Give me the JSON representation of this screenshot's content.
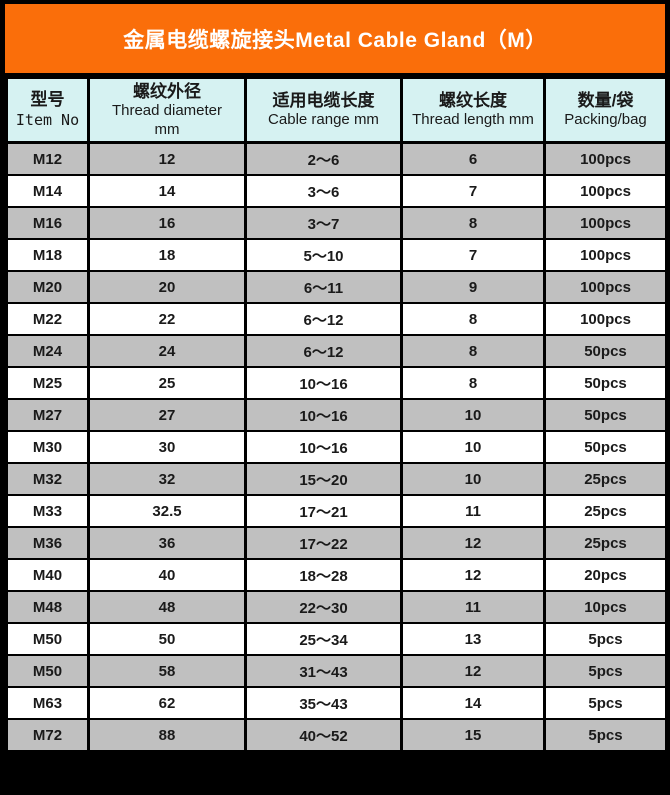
{
  "title": "金属电缆螺旋接头Metal Cable Gland（M）",
  "colors": {
    "title_bg": "#fa6e0a",
    "title_text": "#ffffff",
    "column_header_bg": "#d6f2f2",
    "row_bg": "#ffffff",
    "row_alt_bg": "#c0c0c0",
    "border": "#000000",
    "text": "#1a1a1a"
  },
  "columns": [
    {
      "zh": "型号",
      "en": "Item No",
      "unit": ""
    },
    {
      "zh": "螺纹外径",
      "en": "Thread diameter",
      "unit": "mm"
    },
    {
      "zh": "适用电缆长度",
      "en": "Cable range mm",
      "unit": ""
    },
    {
      "zh": "螺纹长度",
      "en": "Thread length mm",
      "unit": ""
    },
    {
      "zh": "数量/袋",
      "en": "Packing/bag",
      "unit": ""
    }
  ],
  "rows": [
    {
      "item": "M12",
      "thread_diameter": "12",
      "cable_range": "2～6",
      "thread_length": "6",
      "packing": "100pcs",
      "shaded": true
    },
    {
      "item": "M14",
      "thread_diameter": "14",
      "cable_range": "3～6",
      "thread_length": "7",
      "packing": "100pcs",
      "shaded": false
    },
    {
      "item": "M16",
      "thread_diameter": "16",
      "cable_range": "3～7",
      "thread_length": "8",
      "packing": "100pcs",
      "shaded": true
    },
    {
      "item": "M18",
      "thread_diameter": "18",
      "cable_range": "5～10",
      "thread_length": "7",
      "packing": "100pcs",
      "shaded": false
    },
    {
      "item": "M20",
      "thread_diameter": "20",
      "cable_range": "6～11",
      "thread_length": "9",
      "packing": "100pcs",
      "shaded": true
    },
    {
      "item": "M22",
      "thread_diameter": "22",
      "cable_range": "6～12",
      "thread_length": "8",
      "packing": "100pcs",
      "shaded": false
    },
    {
      "item": "M24",
      "thread_diameter": "24",
      "cable_range": "6～12",
      "thread_length": "8",
      "packing": "50pcs",
      "shaded": true
    },
    {
      "item": "M25",
      "thread_diameter": "25",
      "cable_range": "10～16",
      "thread_length": "8",
      "packing": "50pcs",
      "shaded": false
    },
    {
      "item": "M27",
      "thread_diameter": "27",
      "cable_range": "10～16",
      "thread_length": "10",
      "packing": "50pcs",
      "shaded": true
    },
    {
      "item": "M30",
      "thread_diameter": "30",
      "cable_range": "10～16",
      "thread_length": "10",
      "packing": "50pcs",
      "shaded": false
    },
    {
      "item": "M32",
      "thread_diameter": "32",
      "cable_range": "15～20",
      "thread_length": "10",
      "packing": "25pcs",
      "shaded": true
    },
    {
      "item": "M33",
      "thread_diameter": "32.5",
      "cable_range": "17～21",
      "thread_length": "11",
      "packing": "25pcs",
      "shaded": false
    },
    {
      "item": "M36",
      "thread_diameter": "36",
      "cable_range": "17～22",
      "thread_length": "12",
      "packing": "25pcs",
      "shaded": true
    },
    {
      "item": "M40",
      "thread_diameter": "40",
      "cable_range": "18～28",
      "thread_length": "12",
      "packing": "20pcs",
      "shaded": false
    },
    {
      "item": "M48",
      "thread_diameter": "48",
      "cable_range": "22～30",
      "thread_length": "11",
      "packing": "10pcs",
      "shaded": true
    },
    {
      "item": "M50",
      "thread_diameter": "50",
      "cable_range": "25～34",
      "thread_length": "13",
      "packing": "5pcs",
      "shaded": false
    },
    {
      "item": "M50",
      "thread_diameter": "58",
      "cable_range": "31～43",
      "thread_length": "12",
      "packing": "5pcs",
      "shaded": true
    },
    {
      "item": "M63",
      "thread_diameter": "62",
      "cable_range": "35～43",
      "thread_length": "14",
      "packing": "5pcs",
      "shaded": false
    },
    {
      "item": "M72",
      "thread_diameter": "88",
      "cable_range": "40～52",
      "thread_length": "15",
      "packing": "5pcs",
      "shaded": true
    }
  ]
}
